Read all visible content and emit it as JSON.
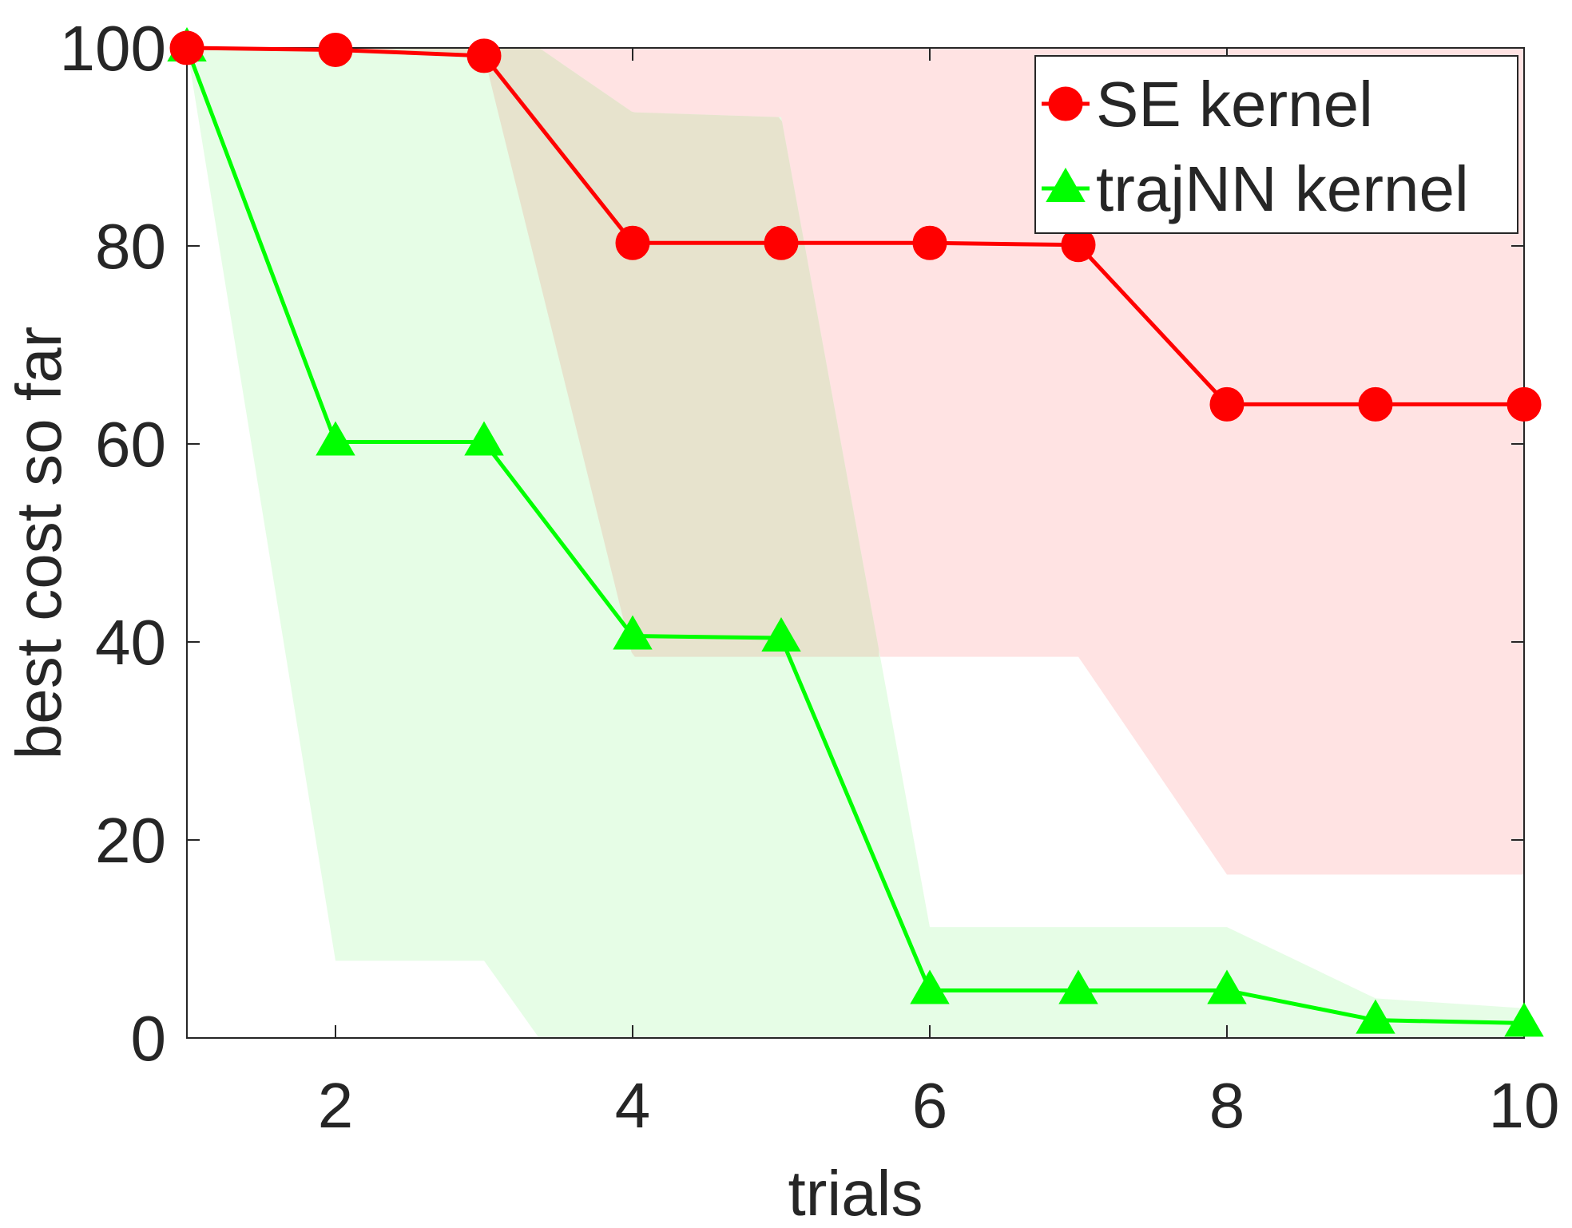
{
  "chart_data": {
    "type": "line",
    "title": "",
    "xlabel": "trials",
    "ylabel": "best cost so far",
    "xlim": [
      1,
      10
    ],
    "ylim": [
      0,
      100
    ],
    "x": [
      1,
      2,
      3,
      4,
      5,
      6,
      7,
      8,
      9,
      10
    ],
    "xticks": [
      2,
      4,
      6,
      8,
      10
    ],
    "yticks": [
      0,
      20,
      40,
      60,
      80,
      100
    ],
    "grid": false,
    "legend_position": "top-right",
    "series": [
      {
        "name": "SE kernel",
        "marker": "circle",
        "color": "#ff0000",
        "band_color": "#ffe3e3",
        "values": [
          100,
          99.8,
          99.2,
          80.3,
          80.3,
          80.3,
          80.1,
          64.0,
          64.0,
          64.0
        ],
        "band_x": [
          1,
          2,
          3,
          4,
          5,
          6,
          7,
          8,
          9,
          10
        ],
        "band_upper": [
          100,
          100,
          100,
          100,
          100,
          100,
          100,
          100,
          100,
          100
        ],
        "band_lower": [
          100,
          99.8,
          99.2,
          38.5,
          38.5,
          38.5,
          38.5,
          16.5,
          16.5,
          16.5
        ]
      },
      {
        "name": "trajNN kernel",
        "marker": "triangle",
        "color": "#00ff00",
        "band_color": "#e3fde3",
        "values": [
          100,
          60.2,
          60.2,
          40.6,
          40.4,
          4.8,
          4.8,
          4.8,
          1.8,
          1.5
        ],
        "band_x": [
          1,
          2,
          3,
          3.37,
          4,
          5,
          6,
          7,
          8,
          9,
          10
        ],
        "band_upper": [
          100,
          100,
          100,
          100,
          93.5,
          93.0,
          11.2,
          11.2,
          11.2,
          4.0,
          3.0
        ],
        "band_lower": [
          100,
          7.8,
          7.8,
          0,
          0,
          0,
          0,
          0,
          0,
          0,
          0
        ]
      }
    ],
    "overlap_color": "#e7e3cd"
  }
}
